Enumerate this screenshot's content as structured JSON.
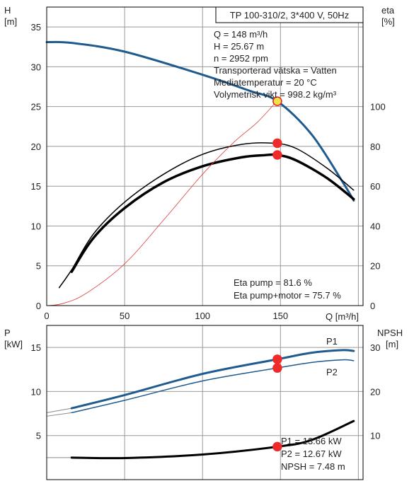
{
  "chart_data": [
    {
      "type": "line",
      "title": "TP 100-310/2, 3*400 V, 50Hz",
      "xlabel": "Q [m³/h]",
      "ylabel_left": [
        "H",
        "[m]"
      ],
      "ylabel_right": [
        "eta",
        "[%]"
      ],
      "x_ticks": [
        "0",
        "50",
        "100",
        "150"
      ],
      "y_left_ticks": [
        "0",
        "5",
        "10",
        "15",
        "20",
        "25",
        "30",
        "35"
      ],
      "y_right_ticks": [
        "0",
        "20",
        "40",
        "60",
        "80",
        "100"
      ],
      "xlim": [
        0,
        203
      ],
      "ylim_left": [
        0,
        37.5
      ],
      "ylim_right": [
        0,
        150
      ],
      "grid": true,
      "info_lines": [
        "Q = 148 m³/h",
        "H = 25.67 m",
        "n = 2952 rpm",
        "Transporterad vätska = Vatten",
        "Mediatemperatur = 20 °C",
        "Volymetrisk vikt = 998.2 kg/m³"
      ],
      "eta_lines": [
        "Eta pump = 81.6 %",
        "Eta pump+motor = 75.7 %"
      ],
      "series": [
        {
          "axis": "left",
          "color": "#1f5b8e",
          "width": 3,
          "x": [
            0,
            16,
            50,
            100,
            130,
            148,
            170,
            190,
            197
          ],
          "y": [
            33.1,
            33.0,
            31.9,
            29.0,
            27.0,
            25.67,
            21.5,
            15.5,
            13.2
          ],
          "extension_to_axis": true
        },
        {
          "axis": "right",
          "color": "#000000",
          "width": 1.5,
          "x": [
            8,
            16,
            30,
            50,
            75,
            100,
            125,
            145,
            160,
            180,
            197
          ],
          "y": [
            9,
            18,
            36,
            52,
            66,
            76,
            81,
            81.6,
            79,
            69,
            58
          ]
        },
        {
          "axis": "right",
          "color": "#000000",
          "width": 3.5,
          "x": [
            16,
            30,
            50,
            75,
            100,
            125,
            140,
            148,
            160,
            180,
            197
          ],
          "y": [
            17,
            34,
            49,
            62,
            70,
            74.5,
            75.6,
            75.7,
            73,
            64,
            53.5
          ]
        },
        {
          "axis": "right",
          "color": "#d94040",
          "width": 0.8,
          "x": [
            0,
            10,
            25,
            50,
            75,
            100,
            120,
            135,
            148
          ],
          "y": [
            0,
            1,
            6,
            21,
            43,
            66,
            82,
            92,
            103
          ]
        }
      ],
      "markers": [
        {
          "axis": "left",
          "x": 148,
          "y": 25.67,
          "fill": "#f1e04a",
          "stroke": "#e02020"
        },
        {
          "axis": "right",
          "x": 148,
          "y": 81.6,
          "fill": "#ee2b2b",
          "stroke": "#ee2b2b"
        },
        {
          "axis": "right",
          "x": 148,
          "y": 75.7,
          "fill": "#ee2b2b",
          "stroke": "#ee2b2b"
        }
      ]
    },
    {
      "type": "line",
      "ylabel_left": [
        "P",
        "[kW]"
      ],
      "ylabel_right": [
        "NPSH",
        "[m]"
      ],
      "y_left_ticks": [
        "5",
        "10",
        "15"
      ],
      "y_right_ticks": [
        "10",
        "20",
        "30"
      ],
      "xlim": [
        0,
        203
      ],
      "ylim_left": [
        0,
        17.5
      ],
      "ylim_right": [
        0,
        35
      ],
      "grid": true,
      "series": [
        {
          "name": "P1",
          "axis": "left",
          "color": "#1f5b8e",
          "width": 3,
          "x": [
            16,
            50,
            100,
            148,
            170,
            190,
            197
          ],
          "y": [
            8.1,
            9.6,
            12.0,
            13.66,
            14.4,
            14.7,
            14.6
          ],
          "extension_to_axis": true,
          "extension_y0": 7.6
        },
        {
          "name": "P2",
          "axis": "left",
          "color": "#1f5b8e",
          "width": 1.5,
          "x": [
            16,
            50,
            100,
            148,
            170,
            190,
            197
          ],
          "y": [
            7.6,
            9.0,
            11.2,
            12.67,
            13.3,
            13.6,
            13.5
          ],
          "extension_to_axis": true,
          "extension_y0": 7.2
        },
        {
          "axis": "right",
          "color": "#000000",
          "width": 3,
          "x": [
            16,
            50,
            100,
            148,
            170,
            197
          ],
          "y": [
            5.0,
            4.9,
            5.7,
            7.48,
            9.0,
            13.3
          ],
          "extension_to_axis": true,
          "extension_y0": 5.0
        }
      ],
      "markers": [
        {
          "axis": "left",
          "x": 148,
          "y": 13.66,
          "fill": "#ee2b2b",
          "stroke": "#ee2b2b"
        },
        {
          "axis": "left",
          "x": 148,
          "y": 12.67,
          "fill": "#ee2b2b",
          "stroke": "#ee2b2b"
        },
        {
          "axis": "right",
          "x": 148,
          "y": 7.48,
          "fill": "#ee2b2b",
          "stroke": "#ee2b2b"
        }
      ],
      "result_lines": [
        "P1 = 13.66 kW",
        "P2 = 12.67 kW",
        "NPSH = 7.48 m"
      ]
    }
  ]
}
